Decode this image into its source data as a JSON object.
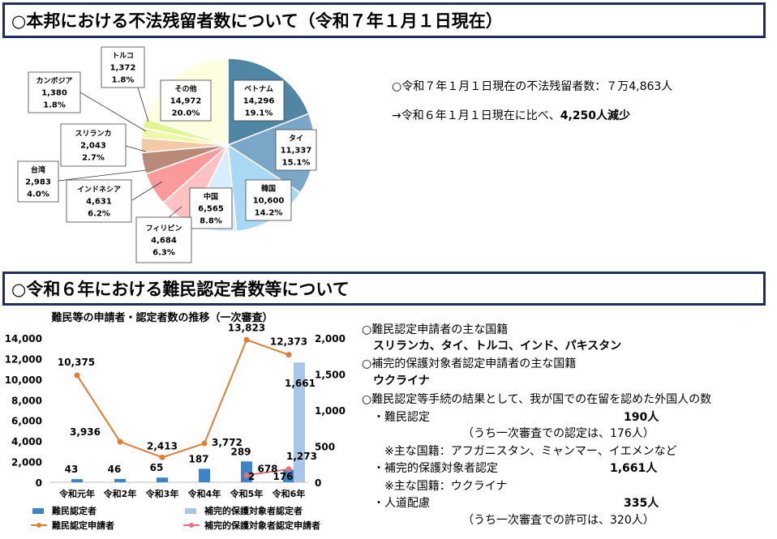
{
  "section1": {
    "title": "○本邦における不法残留者数について（令和７年１月１日現在）",
    "summary_line1": "○令和７年１月１日現在の不法残留者数：７万4,863人",
    "summary_line2_prefix": "→令和６年１月１日現在に比べ、",
    "summary_line2_bold": "4,250人減少"
  },
  "section2": {
    "title": "○令和６年における難民認定者数等について",
    "right": {
      "l1": "○難民認定申請者の主な国籍",
      "l2": "スリランカ、タイ、トルコ、インド、パキスタン",
      "l3": "○補完的保護対象者認定申請者の主な国籍",
      "l4": "ウクライナ",
      "l5": "○難民認定等手続の結果として、我が国での在留を認めた外国人の数",
      "l6_label": "・難民認定",
      "l6_value": "190人",
      "l7": "（うち一次審査での認定は、176人）",
      "l8": "※主な国籍：アフガニスタン、ミャンマー、イエメンなど",
      "l9_label": "・補完的保護対象者認定",
      "l9_value": "1,661人",
      "l10": "※主な国籍：ウクライナ",
      "l11_label": "・人道配慮",
      "l11_value": "335人",
      "l12": "（うち一次審査での許可は、320人）"
    }
  },
  "chart_data": [
    {
      "type": "pie",
      "slices": [
        {
          "label": "ベトナム",
          "value": 14296,
          "percent": "19.1%",
          "color": "#4f86a4"
        },
        {
          "label": "タイ",
          "value": 11337,
          "percent": "15.1%",
          "color": "#7aa7c7"
        },
        {
          "label": "韓国",
          "value": 10600,
          "percent": "14.2%",
          "color": "#a9d8f5"
        },
        {
          "label": "中国",
          "value": 6565,
          "percent": "8.8%",
          "color": "#d8eefb"
        },
        {
          "label": "フィリピン",
          "value": 4684,
          "percent": "6.3%",
          "color": "#ffc1c1"
        },
        {
          "label": "インドネシア",
          "value": 4631,
          "percent": "6.2%",
          "color": "#fb9a9a"
        },
        {
          "label": "台湾",
          "value": 2983,
          "percent": "4.0%",
          "color": "#b98a78"
        },
        {
          "label": "スリランカ",
          "value": 2043,
          "percent": "2.7%",
          "color": "#f5c8a6"
        },
        {
          "label": "カンボジア",
          "value": 1380,
          "percent": "1.8%",
          "color": "#eef8a8"
        },
        {
          "label": "トルコ",
          "value": 1372,
          "percent": "1.8%",
          "color": "#e2f596"
        },
        {
          "label": "その他",
          "value": 14972,
          "percent": "20.0%",
          "color": "#fdfde0"
        }
      ]
    },
    {
      "type": "bar+line",
      "title": "難民等の申請者・認定者数の推移（一次審査）",
      "categories": [
        "令和元年",
        "令和2年",
        "令和3年",
        "令和4年",
        "令和5年",
        "令和6年"
      ],
      "left_ylim": [
        0,
        14000
      ],
      "left_ticks": [
        "0",
        "2,000",
        "4,000",
        "6,000",
        "8,000",
        "10,000",
        "12,000",
        "14,000"
      ],
      "right_ylim": [
        0,
        2000
      ],
      "right_ticks": [
        "0",
        "500",
        "1,000",
        "1,500",
        "2,000"
      ],
      "series": [
        {
          "name": "難民認定者",
          "type": "bar",
          "axis": "right",
          "color": "#3c84c6",
          "values": [
            43,
            46,
            65,
            187,
            289,
            176
          ]
        },
        {
          "name": "補完的保護対象者認定者",
          "type": "bar",
          "axis": "right",
          "color": "#a8c6e6",
          "values": [
            null,
            null,
            null,
            null,
            2,
            1661
          ]
        },
        {
          "name": "難民認定申請者",
          "type": "line",
          "axis": "left",
          "color": "#e07d34",
          "values": [
            10375,
            3936,
            2413,
            3772,
            13823,
            12373
          ]
        },
        {
          "name": "補完的保護対象者認定申請者",
          "type": "line",
          "axis": "left",
          "color": "#e56f7a",
          "values": [
            null,
            null,
            null,
            null,
            678,
            1273
          ]
        }
      ],
      "legend": "bottom"
    }
  ]
}
